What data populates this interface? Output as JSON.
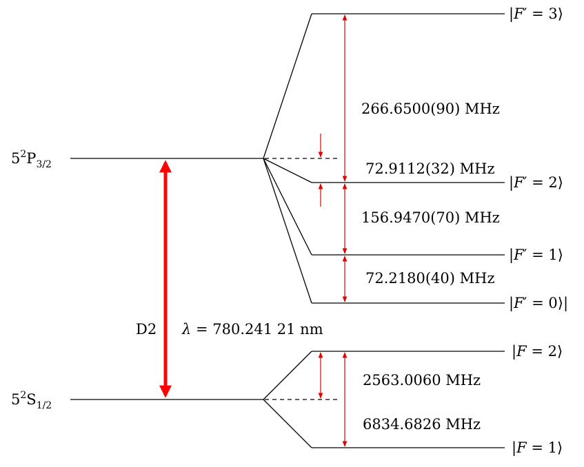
{
  "levels": {
    "p32": {
      "prefix": "5",
      "sup": "2",
      "letter": "P",
      "sub": "3/2"
    },
    "s12": {
      "prefix": "5",
      "sup": "2",
      "letter": "S",
      "sub": "1/2"
    }
  },
  "hyperfine_excited": {
    "f3": {
      "var": "F",
      "prime": "′",
      "value": "3"
    },
    "f2": {
      "var": "F",
      "prime": "′",
      "value": "2"
    },
    "f1": {
      "var": "F",
      "prime": "′",
      "value": "1"
    },
    "f0": {
      "var": "F",
      "prime": "′",
      "value": "0"
    }
  },
  "hyperfine_ground": {
    "f2": {
      "var": "F",
      "value": "2"
    },
    "f1": {
      "var": "F",
      "value": "1"
    }
  },
  "splittings": {
    "f3_f2": "266.6500(90) MHz",
    "f2_shift": "72.9112(32) MHz",
    "f2_f1": "156.9470(70) MHz",
    "f1_f0": "72.2180(40) MHz",
    "ground_shift": "2563.0060 MHz",
    "ground_total": "6834.6826 MHz"
  },
  "transition": {
    "name": "D2",
    "lambda_symbol": "λ",
    "lambda_value": "780.241 21 nm"
  },
  "colors": {
    "transition_arrow": "#ff0000",
    "splitting_arrows": "#e00000",
    "lines": "#000000"
  }
}
